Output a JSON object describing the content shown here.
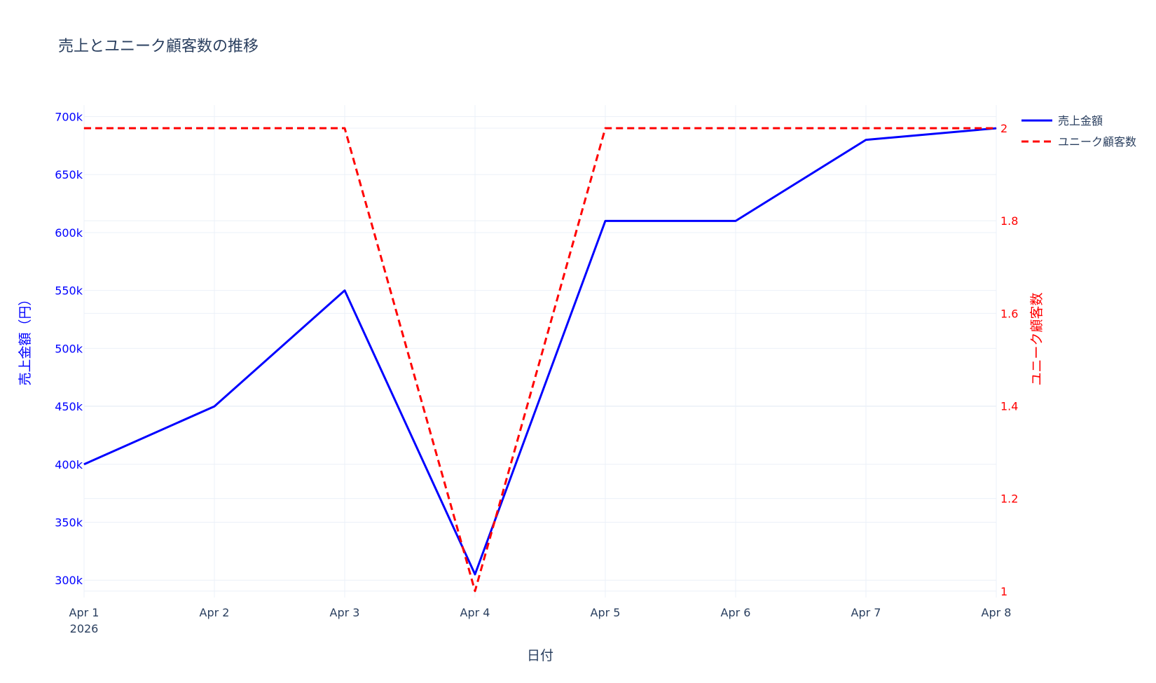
{
  "chart_data": {
    "type": "line",
    "title": "売上とユニーク顧客数の推移",
    "xlabel": "日付",
    "x": [
      "Apr 1",
      "Apr 2",
      "Apr 3",
      "Apr 4",
      "Apr 5",
      "Apr 6",
      "Apr 7",
      "Apr 8"
    ],
    "x_year_label": "2026",
    "y_left": {
      "label": "売上金額（円）",
      "range": [
        285000,
        710000
      ],
      "ticks": [
        300000,
        350000,
        400000,
        450000,
        500000,
        550000,
        600000,
        650000,
        700000
      ],
      "tick_labels": [
        "300k",
        "350k",
        "400k",
        "450k",
        "500k",
        "550k",
        "600k",
        "650k",
        "700k"
      ],
      "color": "#0000ff"
    },
    "y_right": {
      "label": "ユニーク顧客数",
      "range": [
        0.986,
        2.05
      ],
      "ticks": [
        1,
        1.2,
        1.4,
        1.6,
        1.8,
        2
      ],
      "tick_labels": [
        "1",
        "1.2",
        "1.4",
        "1.6",
        "1.8",
        "2"
      ],
      "color": "#ff0000"
    },
    "series": [
      {
        "name": "売上金額",
        "axis": "left",
        "color": "#0000ff",
        "dash": "solid",
        "values": [
          400000,
          450000,
          550000,
          305000,
          610000,
          610000,
          680000,
          690000
        ]
      },
      {
        "name": "ユニーク顧客数",
        "axis": "right",
        "color": "#ff0000",
        "dash": "dash",
        "values": [
          2,
          2,
          2,
          1,
          2,
          2,
          2,
          2
        ]
      }
    ],
    "grid": true,
    "legend_position": "top-right"
  }
}
